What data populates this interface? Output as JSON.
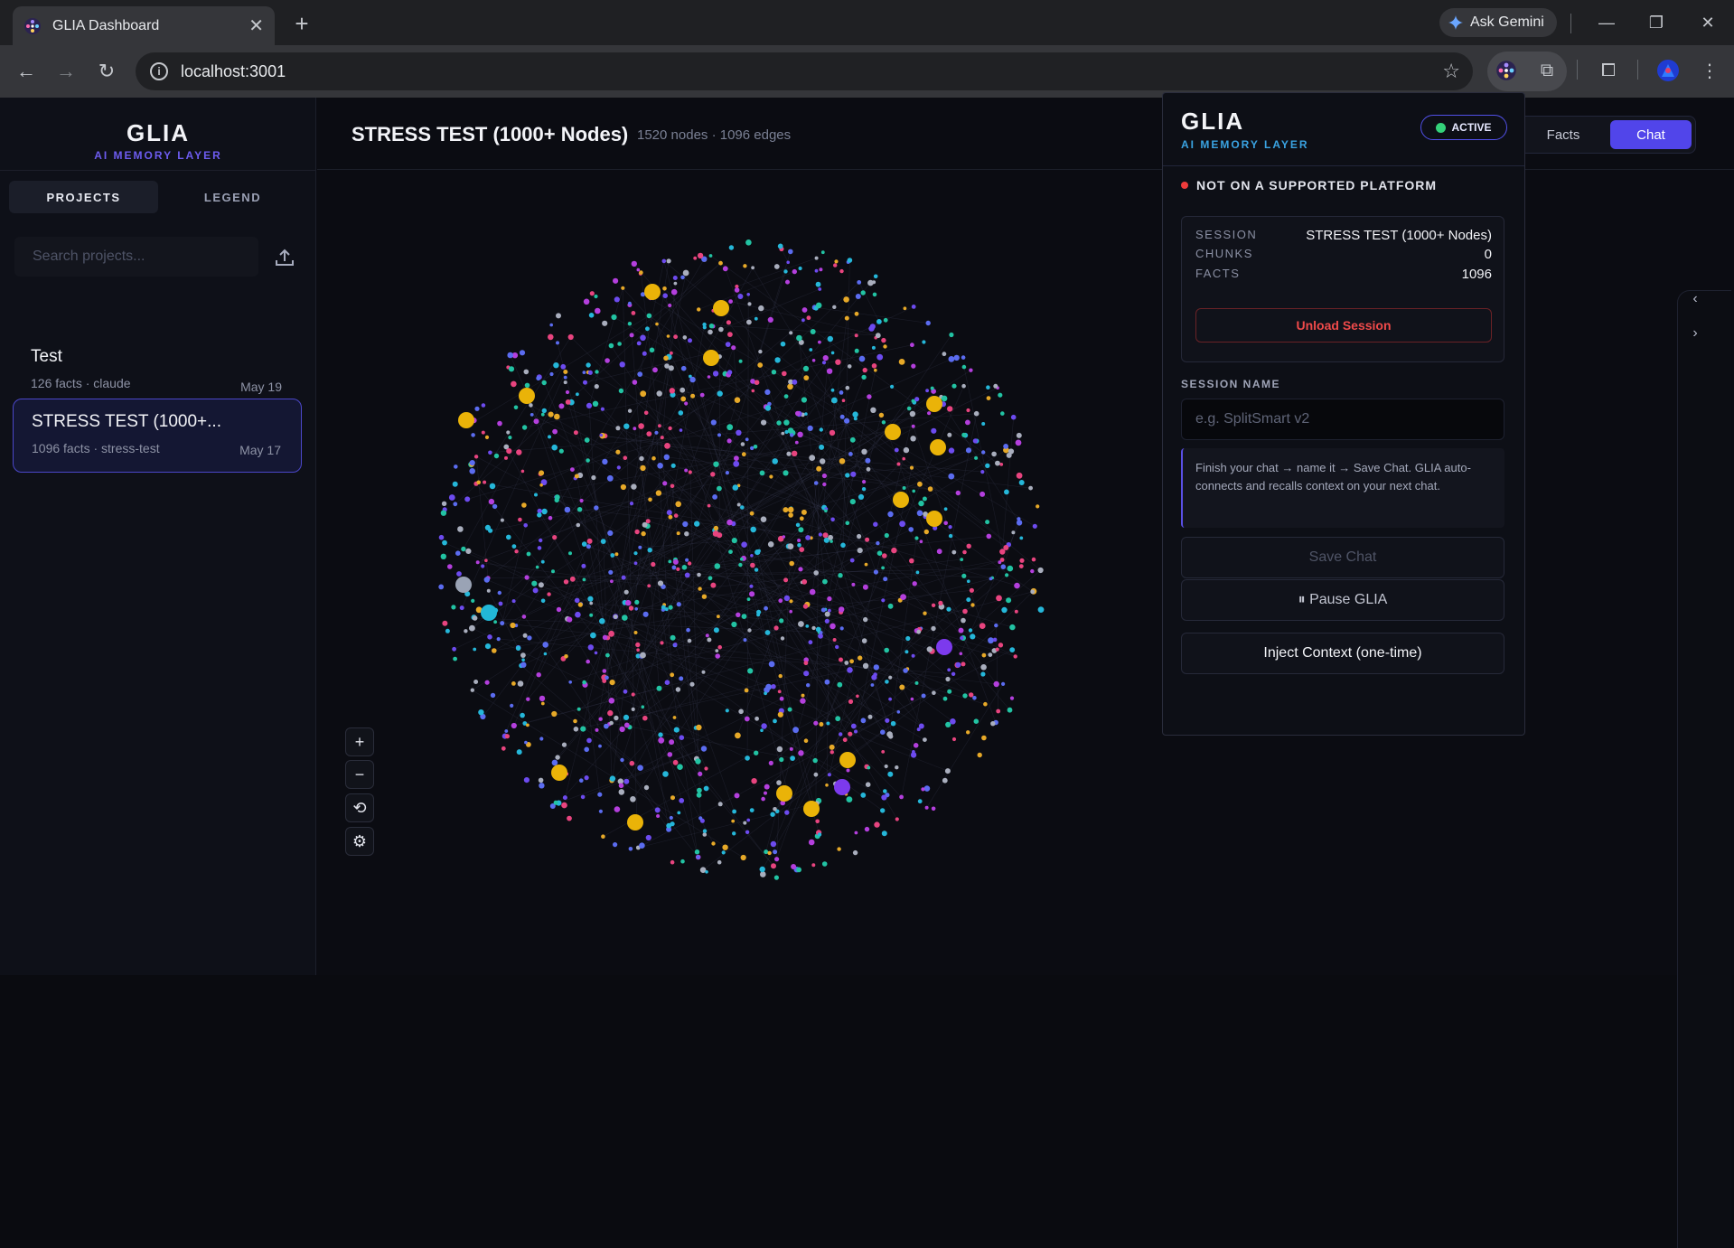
{
  "browser": {
    "tab_title": "GLIA Dashboard",
    "gemini_label": "Ask Gemini",
    "url": "localhost:3001"
  },
  "sidebar": {
    "logo_name": "GLIA",
    "logo_sub": "AI MEMORY LAYER",
    "tabs": [
      {
        "label": "PROJECTS",
        "active": true
      },
      {
        "label": "LEGEND",
        "active": false
      }
    ],
    "search_placeholder": "Search projects...",
    "projects": [
      {
        "name": "Test",
        "meta": "126 facts · claude",
        "date": "May 19",
        "selected": false
      },
      {
        "name": "STRESS TEST (1000+...",
        "meta": "1096 facts · stress-test",
        "date": "May 17",
        "selected": true
      }
    ]
  },
  "header": {
    "title": "STRESS TEST (1000+ Nodes)",
    "stats": "1520 nodes · 1096 edges",
    "view_tabs": [
      {
        "label": "Facts",
        "active": false
      },
      {
        "label": "Chat",
        "active": true
      }
    ]
  },
  "graph": {
    "zoom_controls": [
      "+",
      "−"
    ],
    "node_palette": [
      "#6d4bef",
      "#e8447f",
      "#e7a928",
      "#22c3a3",
      "#25b7d9",
      "#a9aebd",
      "#b43fdd",
      "#5b6cf0"
    ],
    "hub_color": "#eab308",
    "node_count": 1520,
    "edge_count": 1096
  },
  "popup": {
    "name": "GLIA",
    "sub": "AI MEMORY LAYER",
    "badge": "ACTIVE",
    "status": "NOT ON A SUPPORTED PLATFORM",
    "session_key": "SESSION",
    "session_value": "STRESS TEST (1000+ Nodes)",
    "chunks_key": "CHUNKS",
    "chunks_value": "0",
    "facts_key": "FACTS",
    "facts_value": "1096",
    "unload_label": "Unload Session",
    "session_name_label": "SESSION NAME",
    "session_name_placeholder": "e.g. SplitSmart v2",
    "hint": "Finish your chat → name it → Save Chat. GLIA auto-connects and recalls context on your next chat.",
    "save_label": "Save Chat",
    "pause_label": "⏸ Pause GLIA",
    "inject_label": "Inject Context (one-time)"
  }
}
